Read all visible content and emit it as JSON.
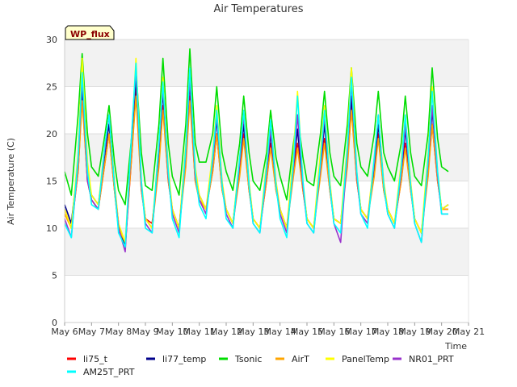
{
  "chart_data": {
    "type": "line",
    "title": "Air Temperatures",
    "xlabel": "Time",
    "ylabel": "Air Temperature (C)",
    "site_label": "WP_flux",
    "ylim": [
      0,
      30
    ],
    "yticks": [
      0,
      5,
      10,
      15,
      20,
      25,
      30
    ],
    "xlim": [
      6,
      21
    ],
    "xtick_values": [
      6,
      7,
      8,
      9,
      10,
      11,
      12,
      13,
      14,
      15,
      16,
      17,
      18,
      19,
      20,
      21
    ],
    "xtick_labels": [
      "May 6",
      "May 7",
      "May 8",
      "May 9",
      "May 10",
      "May 11",
      "May 12",
      "May 13",
      "May 14",
      "May 15",
      "May 16",
      "May 17",
      "May 18",
      "May 19",
      "May 20",
      "May 21"
    ],
    "grid": true,
    "legend_position": "bottom",
    "series": [
      {
        "name": "li75_t",
        "color": "#ff0000",
        "x": [
          6.0,
          6.25,
          6.5,
          6.65,
          6.85,
          7.0,
          7.25,
          7.5,
          7.65,
          7.85,
          8.0,
          8.25,
          8.5,
          8.65,
          8.85,
          9.0,
          9.25,
          9.5,
          9.65,
          9.85,
          10.0,
          10.25,
          10.5,
          10.65,
          10.85,
          11.0,
          11.25,
          11.5,
          11.65,
          11.85,
          12.0,
          12.25,
          12.5,
          12.65,
          12.85,
          13.0,
          13.25,
          13.5,
          13.65,
          13.85,
          14.0,
          14.25,
          14.5,
          14.65,
          14.85,
          15.0,
          15.25,
          15.5,
          15.65,
          15.85,
          16.0,
          16.25,
          16.5,
          16.65,
          16.85,
          17.0,
          17.25,
          17.5,
          17.65,
          17.85,
          18.0,
          18.25,
          18.5,
          18.65,
          18.85,
          19.0,
          19.25,
          19.5,
          19.65,
          19.85,
          20.0,
          20.25
        ],
        "y": [
          12.0,
          10.0,
          16.0,
          24.0,
          15.0,
          13.0,
          12.0,
          17.0,
          20.0,
          14.0,
          10.0,
          8.0,
          18.0,
          25.0,
          14.0,
          11.0,
          10.5,
          17.0,
          23.0,
          15.0,
          12.0,
          10.0,
          17.0,
          24.0,
          15.0,
          13.0,
          12.0,
          16.0,
          20.0,
          14.0,
          12.0,
          10.5,
          16.0,
          20.0,
          14.0,
          11.0,
          10.0,
          15.0,
          19.0,
          14.0,
          12.0,
          10.0,
          16.0,
          19.0,
          14.0,
          11.0,
          10.0,
          16.0,
          19.5,
          14.0,
          11.0,
          10.5,
          17.0,
          23.0,
          15.0,
          12.0,
          11.0,
          16.0,
          20.0,
          14.0,
          12.0,
          10.5,
          15.0,
          19.0,
          14.0,
          11.0,
          9.5,
          16.0,
          21.0,
          15.0,
          12.0,
          12.0
        ]
      },
      {
        "name": "li77_temp",
        "color": "#00008b",
        "x": [
          6.0,
          6.25,
          6.5,
          6.65,
          6.85,
          7.0,
          7.25,
          7.5,
          7.65,
          7.85,
          8.0,
          8.25,
          8.5,
          8.65,
          8.85,
          9.0,
          9.25,
          9.5,
          9.65,
          9.85,
          10.0,
          10.25,
          10.5,
          10.65,
          10.85,
          11.0,
          11.25,
          11.5,
          11.65,
          11.85,
          12.0,
          12.25,
          12.5,
          12.65,
          12.85,
          13.0,
          13.25,
          13.5,
          13.65,
          13.85,
          14.0,
          14.25,
          14.5,
          14.65,
          14.85,
          15.0,
          15.25,
          15.5,
          15.65,
          15.85,
          16.0,
          16.25,
          16.5,
          16.65,
          16.85,
          17.0,
          17.25,
          17.5,
          17.65,
          17.85,
          18.0,
          18.25,
          18.5,
          18.65,
          18.85,
          19.0,
          19.25,
          19.5,
          19.65,
          19.85,
          20.0,
          20.25
        ],
        "y": [
          12.5,
          10.5,
          17.0,
          25.0,
          15.0,
          13.5,
          12.5,
          18.0,
          21.0,
          14.5,
          10.5,
          8.0,
          19.0,
          26.0,
          14.5,
          11.0,
          10.0,
          18.0,
          24.5,
          15.5,
          12.0,
          10.0,
          18.0,
          25.5,
          15.5,
          13.5,
          12.0,
          17.0,
          21.5,
          14.5,
          12.0,
          10.5,
          17.0,
          21.0,
          14.5,
          11.0,
          10.0,
          15.5,
          20.0,
          14.5,
          12.0,
          10.0,
          16.5,
          20.5,
          14.5,
          11.0,
          10.0,
          16.5,
          21.0,
          14.5,
          11.0,
          10.5,
          17.5,
          24.0,
          15.5,
          12.0,
          11.0,
          16.5,
          21.0,
          14.5,
          12.0,
          10.5,
          15.5,
          20.5,
          14.5,
          11.0,
          9.5,
          16.5,
          22.5,
          15.5,
          12.0,
          12.5
        ]
      },
      {
        "name": "Tsonic",
        "color": "#00dd00",
        "x": [
          6.0,
          6.25,
          6.5,
          6.65,
          6.85,
          7.0,
          7.25,
          7.5,
          7.65,
          7.85,
          8.0,
          8.25,
          8.5,
          8.65,
          8.85,
          9.0,
          9.25,
          9.5,
          9.65,
          9.85,
          10.0,
          10.25,
          10.5,
          10.65,
          10.85,
          11.0,
          11.25,
          11.5,
          11.65,
          11.85,
          12.0,
          12.25,
          12.5,
          12.65,
          12.85,
          13.0,
          13.25,
          13.5,
          13.65,
          13.85,
          14.0,
          14.25,
          14.5,
          14.65,
          14.85,
          15.0,
          15.25,
          15.5,
          15.65,
          15.85,
          16.0,
          16.25,
          16.5,
          16.65,
          16.85,
          17.0,
          17.25,
          17.5,
          17.65,
          17.85,
          18.0,
          18.25,
          18.5,
          18.65,
          18.85,
          19.0,
          19.25,
          19.5,
          19.65,
          19.85,
          20.0,
          20.25
        ],
        "y": [
          16.0,
          13.5,
          22.0,
          28.5,
          20.0,
          16.5,
          15.5,
          20.0,
          23.0,
          17.0,
          14.0,
          12.5,
          20.0,
          27.0,
          18.0,
          14.5,
          14.0,
          21.0,
          28.0,
          19.0,
          15.5,
          13.5,
          21.0,
          29.0,
          19.0,
          17.0,
          17.0,
          20.0,
          25.0,
          18.0,
          16.0,
          14.0,
          19.0,
          24.0,
          18.0,
          15.0,
          14.0,
          18.0,
          22.5,
          17.5,
          15.5,
          13.0,
          19.0,
          22.0,
          17.5,
          15.0,
          14.5,
          20.0,
          24.5,
          18.0,
          15.5,
          14.5,
          21.0,
          27.0,
          19.0,
          16.5,
          15.5,
          20.0,
          24.5,
          18.0,
          16.5,
          15.0,
          19.0,
          24.0,
          18.0,
          15.5,
          14.5,
          20.0,
          27.0,
          19.5,
          16.5,
          16.0
        ]
      },
      {
        "name": "AirT",
        "color": "#ffa500",
        "x": [
          6.0,
          6.25,
          6.5,
          6.65,
          6.85,
          7.0,
          7.25,
          7.5,
          7.65,
          7.85,
          8.0,
          8.25,
          8.5,
          8.65,
          8.85,
          9.0,
          9.25,
          9.5,
          9.65,
          9.85,
          10.0,
          10.25,
          10.5,
          10.65,
          10.85,
          11.0,
          11.25,
          11.5,
          11.65,
          11.85,
          12.0,
          12.25,
          12.5,
          12.65,
          12.85,
          13.0,
          13.25,
          13.5,
          13.65,
          13.85,
          14.0,
          14.25,
          14.5,
          14.65,
          14.85,
          15.0,
          15.25,
          15.5,
          15.65,
          15.85,
          16.0,
          16.25,
          16.5,
          16.65,
          16.85,
          17.0,
          17.25,
          17.5,
          17.65,
          17.85,
          18.0,
          18.25,
          18.5,
          18.65,
          18.85,
          19.0,
          19.25,
          19.5,
          19.65,
          19.85,
          20.0,
          20.25
        ],
        "y": [
          11.5,
          10.0,
          16.0,
          23.5,
          15.0,
          13.0,
          12.0,
          17.0,
          20.0,
          14.0,
          10.0,
          8.5,
          18.0,
          24.0,
          14.0,
          11.0,
          10.0,
          16.5,
          22.5,
          15.0,
          12.0,
          10.0,
          16.5,
          23.5,
          15.0,
          13.0,
          12.0,
          16.0,
          20.0,
          14.0,
          12.0,
          10.5,
          15.5,
          19.5,
          14.0,
          11.0,
          10.0,
          15.0,
          18.5,
          14.0,
          12.0,
          10.0,
          15.5,
          18.5,
          14.0,
          11.0,
          10.0,
          15.5,
          19.0,
          14.0,
          11.0,
          10.5,
          16.5,
          22.5,
          15.0,
          12.0,
          11.0,
          15.5,
          19.5,
          14.0,
          12.0,
          10.5,
          15.0,
          18.5,
          14.0,
          11.0,
          9.5,
          15.5,
          21.0,
          15.0,
          12.0,
          12.0
        ]
      },
      {
        "name": "PanelTemp",
        "color": "#ffff00",
        "x": [
          6.0,
          6.25,
          6.5,
          6.65,
          6.85,
          7.0,
          7.25,
          7.5,
          7.65,
          7.85,
          8.0,
          8.25,
          8.5,
          8.65,
          8.85,
          9.0,
          9.25,
          9.5,
          9.65,
          9.85,
          10.0,
          10.25,
          10.5,
          10.65,
          10.85,
          11.0,
          11.25,
          11.5,
          11.65,
          11.85,
          12.0,
          12.25,
          12.5,
          12.65,
          12.85,
          13.0,
          13.25,
          13.5,
          13.65,
          13.85,
          14.0,
          14.25,
          14.5,
          14.65,
          14.85,
          15.0,
          15.25,
          15.5,
          15.65,
          15.85,
          16.0,
          16.25,
          16.5,
          16.65,
          16.85,
          17.0,
          17.25,
          17.5,
          17.65,
          17.85,
          18.0,
          18.25,
          18.5,
          18.65,
          18.85,
          19.0,
          19.25,
          19.5,
          19.65,
          19.85,
          20.0,
          20.25
        ],
        "y": [
          12.0,
          10.0,
          18.0,
          28.0,
          17.0,
          13.5,
          12.5,
          19.0,
          22.0,
          15.0,
          10.5,
          8.5,
          20.0,
          28.0,
          15.0,
          11.0,
          10.0,
          19.0,
          26.0,
          16.5,
          12.0,
          10.0,
          19.0,
          27.0,
          16.5,
          13.5,
          12.0,
          18.0,
          23.0,
          15.0,
          12.0,
          10.5,
          17.5,
          22.5,
          15.0,
          11.0,
          10.0,
          17.0,
          21.5,
          15.0,
          12.0,
          10.0,
          18.0,
          24.5,
          15.0,
          11.0,
          10.0,
          18.0,
          23.0,
          15.0,
          11.0,
          10.5,
          19.0,
          27.0,
          16.0,
          12.0,
          11.0,
          17.5,
          22.0,
          15.0,
          12.0,
          10.5,
          17.0,
          22.0,
          15.0,
          11.0,
          9.5,
          18.0,
          25.0,
          16.0,
          12.0,
          12.5
        ]
      },
      {
        "name": "NR01_PRT",
        "color": "#9932cc",
        "x": [
          6.0,
          6.25,
          6.5,
          6.65,
          6.85,
          7.0,
          7.25,
          7.5,
          7.65,
          7.85,
          8.0,
          8.25,
          8.5,
          8.65,
          8.85,
          9.0,
          9.25,
          9.5,
          9.65,
          9.85,
          10.0,
          10.25,
          10.5,
          10.65,
          10.85,
          11.0,
          11.25,
          11.5,
          11.65,
          11.85,
          12.0,
          12.25,
          12.5,
          12.65,
          12.85,
          13.0,
          13.25,
          13.5,
          13.65,
          13.85,
          14.0,
          14.25,
          14.5,
          14.65,
          14.85,
          15.0,
          15.25,
          15.5,
          15.65,
          15.85,
          16.0,
          16.25,
          16.5,
          16.65,
          16.85,
          17.0,
          17.25,
          17.5,
          17.65,
          17.85,
          18.0,
          18.25,
          18.5,
          18.65,
          18.85,
          19.0,
          19.25,
          19.5,
          19.65,
          19.85,
          20.0,
          20.25
        ],
        "y": [
          11.0,
          9.0,
          17.0,
          26.0,
          15.0,
          13.0,
          12.0,
          18.5,
          22.0,
          14.5,
          10.0,
          7.5,
          20.0,
          27.0,
          14.5,
          10.5,
          9.5,
          18.5,
          25.0,
          15.5,
          11.5,
          9.5,
          18.0,
          26.0,
          15.5,
          13.0,
          11.5,
          17.0,
          22.0,
          14.5,
          11.5,
          10.0,
          17.0,
          22.0,
          14.5,
          10.5,
          9.5,
          16.0,
          20.5,
          14.5,
          11.5,
          9.5,
          16.5,
          22.0,
          14.5,
          10.5,
          9.5,
          16.5,
          22.0,
          14.5,
          10.5,
          8.5,
          18.0,
          25.5,
          15.5,
          11.5,
          10.5,
          17.0,
          22.0,
          14.5,
          11.5,
          10.0,
          16.0,
          21.0,
          14.5,
          10.5,
          8.5,
          17.0,
          23.0,
          15.5,
          11.5,
          11.5
        ]
      },
      {
        "name": "AM25T_PRT",
        "color": "#00ffff",
        "x": [
          6.0,
          6.25,
          6.5,
          6.65,
          6.85,
          7.0,
          7.25,
          7.5,
          7.65,
          7.85,
          8.0,
          8.25,
          8.5,
          8.65,
          8.85,
          9.0,
          9.25,
          9.5,
          9.65,
          9.85,
          10.0,
          10.25,
          10.5,
          10.65,
          10.85,
          11.0,
          11.25,
          11.5,
          11.65,
          11.85,
          12.0,
          12.25,
          12.5,
          12.65,
          12.85,
          13.0,
          13.25,
          13.5,
          13.65,
          13.85,
          14.0,
          14.25,
          14.5,
          14.65,
          14.85,
          15.0,
          15.25,
          15.5,
          15.65,
          15.85,
          16.0,
          16.25,
          16.5,
          16.65,
          16.85,
          17.0,
          17.25,
          17.5,
          17.65,
          17.85,
          18.0,
          18.25,
          18.5,
          18.65,
          18.85,
          19.0,
          19.25,
          19.5,
          19.65,
          19.85,
          20.0,
          20.25
        ],
        "y": [
          10.5,
          9.0,
          17.5,
          26.5,
          16.0,
          12.5,
          12.0,
          19.0,
          22.0,
          14.5,
          9.5,
          8.0,
          20.5,
          27.5,
          15.0,
          10.0,
          9.5,
          19.0,
          25.5,
          16.0,
          11.0,
          9.0,
          18.5,
          27.0,
          16.0,
          12.5,
          11.0,
          17.5,
          22.5,
          14.5,
          11.0,
          10.0,
          17.5,
          22.5,
          14.5,
          10.5,
          9.5,
          16.5,
          21.5,
          14.5,
          11.0,
          9.0,
          17.0,
          24.0,
          15.0,
          10.5,
          9.5,
          17.0,
          22.5,
          14.5,
          10.5,
          9.5,
          18.5,
          26.0,
          16.0,
          11.5,
          10.0,
          17.5,
          22.0,
          14.5,
          11.5,
          10.0,
          16.5,
          22.0,
          14.5,
          10.5,
          8.5,
          17.5,
          24.5,
          16.0,
          11.5,
          11.5
        ]
      }
    ]
  }
}
